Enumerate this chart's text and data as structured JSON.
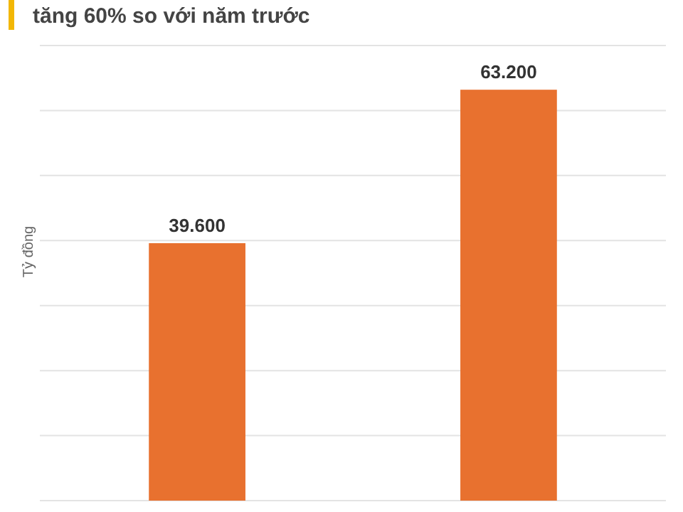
{
  "chart_data": {
    "type": "bar",
    "title": "tăng 60% so với năm trước",
    "ylabel": "Tỷ đồng",
    "categories": [
      null,
      null
    ],
    "values": [
      39.6,
      63.2
    ],
    "color": "#e8712f",
    "value_labels": [
      "39.600",
      "63.200"
    ],
    "ylim": [
      0,
      70
    ],
    "yticks": [
      {
        "value": 0,
        "label": null
      },
      {
        "value": 10,
        "label": null
      },
      {
        "value": 20,
        "label": null
      },
      {
        "value": 30,
        "label": null
      },
      {
        "value": 40,
        "label": null
      },
      {
        "value": 50,
        "label": null
      },
      {
        "value": 60,
        "label": null
      },
      {
        "value": 70,
        "label": null
      }
    ],
    "grid": "y"
  }
}
